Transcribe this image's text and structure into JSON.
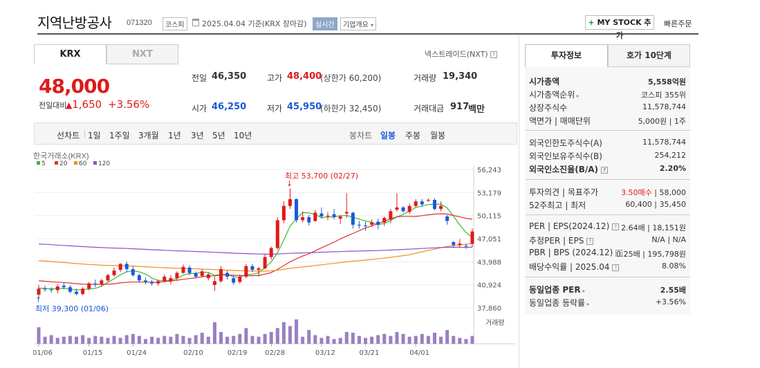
{
  "header": {
    "title": "지역난방공사",
    "code": "071320",
    "market": "코스피",
    "date_text": "2025.04.04 기준(KRX 장마감)",
    "realtime": "실시간",
    "corp_info": "기업개요",
    "mystock": "MY STOCK 추가",
    "fast_order": "빠른주문"
  },
  "tabs": [
    "KRX",
    "NXT"
  ],
  "nextrade": "넥스트레이드(NXT)",
  "quote": {
    "price": "48,000",
    "compare_label": "전일대비",
    "change": "1,650",
    "pct": "+3.56%",
    "prev_label": "전일",
    "prev": "46,350",
    "high_label": "고가",
    "high": "48,400",
    "upper": "(상한가 60,200)",
    "vol_label": "거래량",
    "vol": "19,340",
    "open_label": "시가",
    "open": "46,250",
    "low_label": "저가",
    "low": "45,950",
    "lower": "(하한가 32,450)",
    "amt_label": "거래대금",
    "amt": "917",
    "amt_unit": "백만"
  },
  "toolbar": {
    "line": "선차트",
    "periods": [
      "1일",
      "1주일",
      "3개월",
      "1년",
      "3년",
      "5년",
      "10년"
    ],
    "candle": "봉차트",
    "candles": [
      "일봉",
      "주봉",
      "월봉"
    ]
  },
  "chart_data": {
    "type": "candlestick",
    "source": "한국거래소(KRX)",
    "ma_legend": [
      {
        "name": "5",
        "color": "#3ab53a"
      },
      {
        "name": "20",
        "color": "#e03030"
      },
      {
        "name": "60",
        "color": "#f08c1e"
      },
      {
        "name": "120",
        "color": "#8c4fc8"
      }
    ],
    "y_ticks": [
      "56,243",
      "53,179",
      "50,115",
      "47,051",
      "43,988",
      "40,924",
      "37,860"
    ],
    "ylim": [
      37860,
      56243
    ],
    "x_ticks": [
      "01/06",
      "01/15",
      "01/24",
      "02/10",
      "02/19",
      "02/28",
      "03/12",
      "03/21",
      "04/01"
    ],
    "high_note": "최고 53,700 (02/27)",
    "low_note": "최저 39,300 (01/06)",
    "volume_label": "거래량",
    "candles": [
      [
        39600,
        40900,
        39300,
        40400
      ],
      [
        40400,
        40800,
        40000,
        40300
      ],
      [
        40300,
        40600,
        39900,
        40200
      ],
      [
        40200,
        41000,
        39800,
        40700
      ],
      [
        40800,
        41200,
        40300,
        40600
      ],
      [
        40600,
        40900,
        39800,
        40000
      ],
      [
        40000,
        40400,
        39500,
        39700
      ],
      [
        39700,
        40600,
        39500,
        40400
      ],
      [
        40400,
        41300,
        40200,
        41100
      ],
      [
        41100,
        41600,
        40600,
        41000
      ],
      [
        41000,
        41700,
        40700,
        41500
      ],
      [
        41500,
        42400,
        41300,
        42200
      ],
      [
        42200,
        43200,
        42000,
        42800
      ],
      [
        42900,
        43800,
        42600,
        43700
      ],
      [
        43700,
        44000,
        42600,
        43000
      ],
      [
        43000,
        43400,
        42000,
        42200
      ],
      [
        42200,
        42400,
        41200,
        41500
      ],
      [
        41500,
        41900,
        41000,
        41300
      ],
      [
        41300,
        41600,
        40800,
        41100
      ],
      [
        41100,
        41600,
        40800,
        41400
      ],
      [
        41400,
        42300,
        41300,
        42000
      ],
      [
        41400,
        42200,
        41000,
        41800
      ],
      [
        41800,
        42700,
        41500,
        42500
      ],
      [
        42500,
        43600,
        42400,
        43300
      ],
      [
        43200,
        43500,
        42200,
        42500
      ],
      [
        42500,
        42700,
        41800,
        42000
      ],
      [
        42100,
        43000,
        41900,
        42700
      ],
      [
        41800,
        42500,
        41500,
        42300
      ],
      [
        40900,
        42000,
        40100,
        41400
      ],
      [
        41400,
        43400,
        41200,
        43000
      ],
      [
        42500,
        42800,
        41600,
        42000
      ],
      [
        41800,
        42200,
        40900,
        41200
      ],
      [
        41300,
        42300,
        41100,
        42000
      ],
      [
        42000,
        43700,
        41800,
        43400
      ],
      [
        43400,
        43700,
        42600,
        42900
      ],
      [
        42900,
        43300,
        42000,
        43100
      ],
      [
        43100,
        45000,
        43000,
        44600
      ],
      [
        44600,
        46000,
        44300,
        45800
      ],
      [
        45800,
        49900,
        45600,
        49500
      ],
      [
        49500,
        52000,
        49100,
        51400
      ],
      [
        51400,
        53700,
        51000,
        52300
      ],
      [
        52300,
        52400,
        49200,
        49500
      ],
      [
        49500,
        50700,
        49200,
        49900
      ],
      [
        49900,
        50200,
        48800,
        49200
      ],
      [
        49400,
        50900,
        49300,
        50500
      ],
      [
        50400,
        51200,
        49700,
        50000
      ],
      [
        50000,
        50600,
        49500,
        50100
      ],
      [
        50300,
        51000,
        49600,
        49900
      ],
      [
        49700,
        50200,
        49000,
        50000
      ],
      [
        50400,
        53100,
        49800,
        50600
      ],
      [
        50500,
        50600,
        48400,
        48900
      ],
      [
        48900,
        49400,
        48400,
        48800
      ],
      [
        48800,
        49300,
        48100,
        48700
      ],
      [
        48900,
        49600,
        48600,
        49200
      ],
      [
        49300,
        49700,
        48300,
        48900
      ],
      [
        49200,
        50000,
        48700,
        49800
      ],
      [
        49600,
        51000,
        49100,
        50700
      ],
      [
        50900,
        53100,
        50600,
        51200
      ],
      [
        51200,
        51400,
        50500,
        50700
      ],
      [
        50600,
        51700,
        50300,
        51400
      ],
      [
        51400,
        52300,
        51200,
        52000
      ],
      [
        52000,
        52300,
        51300,
        51600
      ],
      [
        52100,
        52400,
        51900,
        52200
      ],
      [
        52200,
        52400,
        50800,
        51000
      ],
      [
        51000,
        52000,
        50700,
        51400
      ],
      [
        50000,
        50200,
        48900,
        49400
      ],
      [
        46600,
        46700,
        45800,
        46200
      ],
      [
        46200,
        47000,
        45900,
        46400
      ],
      [
        46100,
        46400,
        45700,
        46000
      ],
      [
        46350,
        48400,
        45950,
        48000
      ]
    ],
    "volumes": [
      0.42,
      0.18,
      0.22,
      0.15,
      0.18,
      0.2,
      0.18,
      0.22,
      0.15,
      0.2,
      0.18,
      0.15,
      0.2,
      0.15,
      0.22,
      0.25,
      0.2,
      0.12,
      0.18,
      0.15,
      0.2,
      0.18,
      0.25,
      0.2,
      0.15,
      0.22,
      0.28,
      0.18,
      0.55,
      0.3,
      0.18,
      0.2,
      0.25,
      0.4,
      0.2,
      0.18,
      0.25,
      0.3,
      0.4,
      0.55,
      0.45,
      0.62,
      0.18,
      0.35,
      0.22,
      0.15,
      0.2,
      0.12,
      0.15,
      0.3,
      0.28,
      0.2,
      0.15,
      0.18,
      0.22,
      0.25,
      0.2,
      0.3,
      0.25,
      0.18,
      0.2,
      0.25,
      0.2,
      0.28,
      0.18,
      0.35,
      0.2,
      0.15,
      0.12,
      0.2
    ]
  },
  "right": {
    "tabs": [
      "투자정보",
      "호가 10단계"
    ],
    "g1": [
      [
        "시가총액",
        "5,558억원"
      ],
      [
        "시가총액순위",
        "코스피 355위"
      ],
      [
        "상장주식수",
        "11,578,744"
      ],
      [
        "액면가 | 매매단위",
        "5,000원 | 1주"
      ]
    ],
    "g2": [
      [
        "외국인한도주식수(A)",
        "11,578,744"
      ],
      [
        "외국인보유주식수(B)",
        "254,212"
      ],
      [
        "외국인소진율(B/A)",
        "2.20%"
      ]
    ],
    "g3": [
      [
        "투자의견 | 목표주가",
        "3.50매수",
        "58,000"
      ],
      [
        "52주최고 | 최저",
        "60,400 | 35,450"
      ]
    ],
    "g4": [
      [
        "PER | EPS(2024.12)",
        "2.64배 | 18,151원"
      ],
      [
        "추정PER | EPS",
        "N/A | N/A"
      ],
      [
        "PBR | BPS (2024.12)",
        "0.25배 | 195,798원"
      ],
      [
        "배당수익률 | 2025.04",
        "8.08%"
      ]
    ],
    "g5": [
      [
        "동일업종 PER",
        "2.55배"
      ],
      [
        "동일업종 등락률",
        "+3.56%"
      ]
    ]
  }
}
